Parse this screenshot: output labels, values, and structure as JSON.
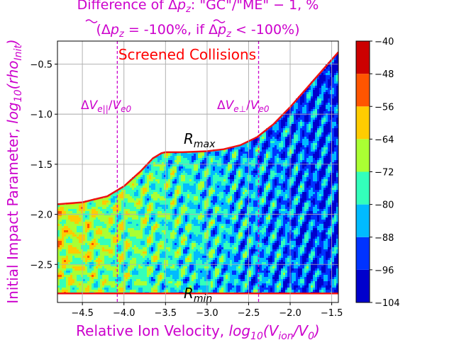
{
  "chart_data": {
    "type": "heatmap",
    "title_line1": "Difference of Δp_z: \"GC\"/\"ME\" − 1, %",
    "title_line2": "(Δp_z = -100%, if Δp_z < -100%)",
    "xlabel": "Relative Ion Velocity,  log10(Vion/V0)",
    "ylabel": "Initial Impact Parameter, log10(rhoInit)",
    "xlim": [
      -4.8,
      -1.42
    ],
    "ylim": [
      -2.88,
      -0.27
    ],
    "xticks": [
      -4.5,
      -4.0,
      -3.5,
      -3.0,
      -2.5,
      -2.0,
      -1.5
    ],
    "xtick_labels": [
      "−4.5",
      "−4.0",
      "−3.5",
      "−3.0",
      "−2.5",
      "−2.0",
      "−1.5"
    ],
    "yticks": [
      -2.5,
      -2.0,
      -1.5,
      -1.0,
      -0.5
    ],
    "ytick_labels": [
      "−2.5",
      "−2.0",
      "−1.5",
      "−1.0",
      "−0.5"
    ],
    "grid": true,
    "colorbar": {
      "levels": [
        -104,
        -96,
        -88,
        -80,
        -72,
        -64,
        -56,
        -48,
        -40
      ],
      "labels": [
        "−104",
        "−96",
        "−88",
        "−80",
        "−72",
        "−64",
        "−56",
        "−48",
        "−40"
      ],
      "colors": [
        "#0000cc",
        "#0033ff",
        "#00bbff",
        "#33ffbb",
        "#aaff33",
        "#ffcc00",
        "#ff5500",
        "#cc0000"
      ]
    },
    "annotations": {
      "screened": "Screened Collisions",
      "rmax": "Rmax",
      "rmin": "Rmin",
      "ve_par": "ΔVe||/Ve0",
      "ve_perp": "ΔVe⊥/Ve0"
    },
    "vlines": [
      -4.08,
      -2.38
    ],
    "rmin_value": -2.79,
    "rmax_curve": {
      "x": [
        -4.8,
        -4.5,
        -4.2,
        -4.0,
        -3.8,
        -3.65,
        -3.55,
        -3.5,
        -3.3,
        -3.0,
        -2.8,
        -2.6,
        -2.4,
        -2.2,
        -2.0,
        -1.8,
        -1.6,
        -1.42
      ],
      "y": [
        -1.9,
        -1.88,
        -1.82,
        -1.72,
        -1.57,
        -1.44,
        -1.39,
        -1.38,
        -1.38,
        -1.37,
        -1.35,
        -1.31,
        -1.23,
        -1.1,
        -0.93,
        -0.74,
        -0.55,
        -0.38
      ]
    }
  }
}
